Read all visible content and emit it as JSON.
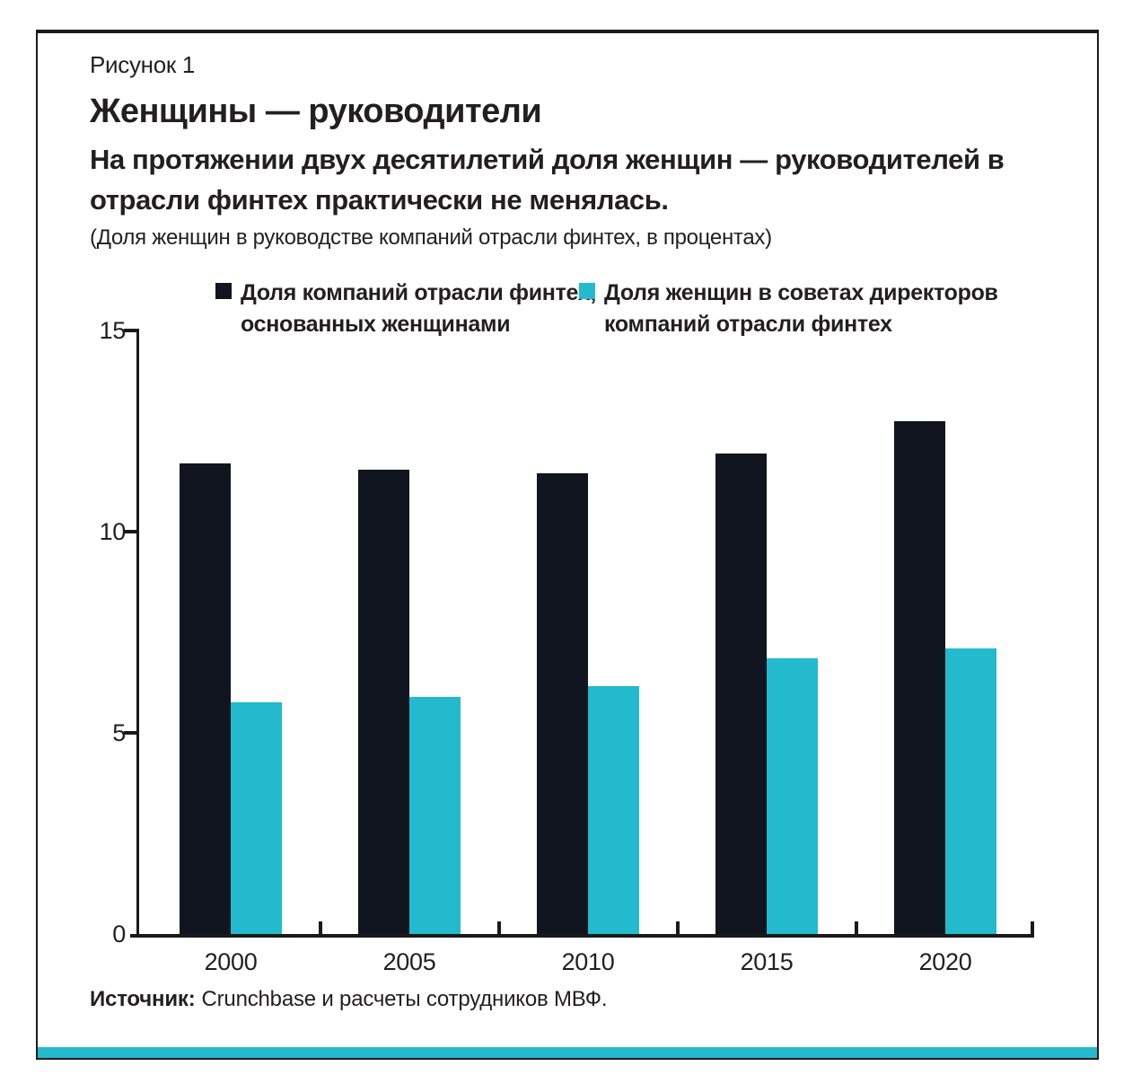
{
  "figure_label": "Рисунок 1",
  "title": "Женщины — руководители",
  "subtitle": "На протяжении двух десятилетий доля женщин — руководителей в отрасли финтех практически не менялась.",
  "units_note": "(Доля женщин в руководстве компаний отрасли финтех, в процентах)",
  "legend": [
    {
      "line1": "Доля компаний отрасли финтех,",
      "line2": "основанных женщинами"
    },
    {
      "line1": "Доля женщин в советах директоров",
      "line2": "компаний отрасли финтех"
    }
  ],
  "source_label": "Источник:",
  "source_text": "Crunchbase и расчеты сотрудников МВФ.",
  "colors": {
    "series_founded": "#10151f",
    "series_boards": "#22bacc",
    "axis": "#1a1a1a",
    "accent_strip": "#22bacc",
    "frame_border": "#1a1a1a"
  },
  "chart_data": {
    "type": "bar",
    "title": "Женщины — руководители",
    "categories": [
      "2000",
      "2005",
      "2010",
      "2015",
      "2020"
    ],
    "series": [
      {
        "name": "Доля компаний отрасли финтех, основанных женщинами",
        "key": "founded",
        "color": "#10151f",
        "values": [
          11.7,
          11.55,
          11.45,
          11.95,
          12.75
        ]
      },
      {
        "name": "Доля женщин в советах директоров компаний отрасли финтех",
        "key": "boards",
        "color": "#22bacc",
        "values": [
          5.75,
          5.9,
          6.15,
          6.85,
          7.1
        ]
      }
    ],
    "xlabel": "",
    "ylabel": "проценты",
    "ylim": [
      0,
      15
    ],
    "yticks": [
      0,
      5,
      10,
      15
    ],
    "grid": false,
    "legend_position": "top"
  }
}
